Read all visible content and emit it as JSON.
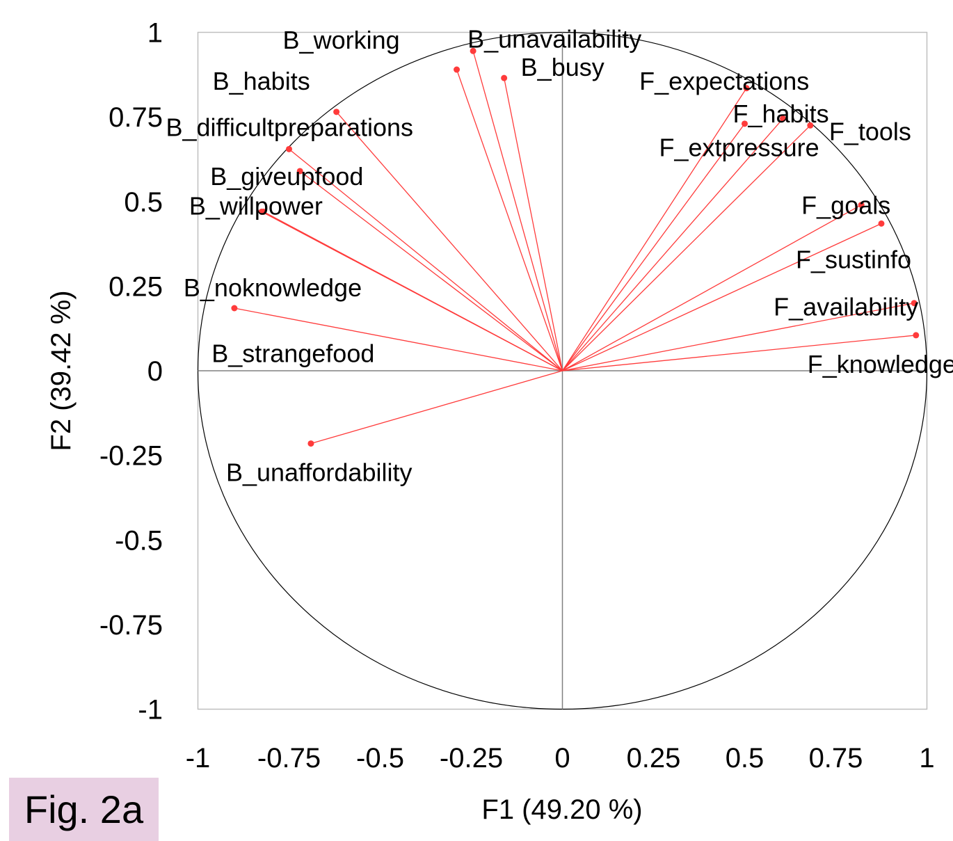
{
  "figure_label": "Fig. 2a",
  "chart_data": {
    "type": "scatter",
    "title": "",
    "xlabel": "F1 (49.20 %)",
    "ylabel": "F2 (39.42 %)",
    "xlim": [
      -1,
      1
    ],
    "ylim": [
      -1,
      1
    ],
    "xticks": [
      "-1",
      "-0.75",
      "-0.5",
      "-0.25",
      "0",
      "0.25",
      "0.5",
      "0.75",
      "1"
    ],
    "yticks": [
      "1",
      "0.75",
      "0.5",
      "0.25",
      "0",
      "-0.25",
      "-0.5",
      "-0.75",
      "-1"
    ],
    "grid": false,
    "unit_circle": true,
    "vector_color": "#ff3b3b",
    "points": [
      {
        "label": "B_working",
        "x": -0.29,
        "y": 0.89
      },
      {
        "label": "B_unavailability",
        "x": -0.245,
        "y": 0.945
      },
      {
        "label": "B_busy",
        "x": -0.16,
        "y": 0.865
      },
      {
        "label": "B_habits",
        "x": -0.62,
        "y": 0.765
      },
      {
        "label": "B_difficultpreparations",
        "x": -0.75,
        "y": 0.655
      },
      {
        "label": "B_giveupfood",
        "x": -0.72,
        "y": 0.59
      },
      {
        "label": "B_willpower",
        "x": -0.82,
        "y": 0.47
      },
      {
        "label": "B_noknowledge",
        "x": -0.9,
        "y": 0.185
      },
      {
        "label": "B_strangefood",
        "x": -0.825,
        "y": 0.47
      },
      {
        "label": "B_unaffordability",
        "x": -0.69,
        "y": -0.215
      },
      {
        "label": "F_expectations",
        "x": 0.505,
        "y": 0.835
      },
      {
        "label": "F_habits",
        "x": 0.5,
        "y": 0.73
      },
      {
        "label": "F_tools",
        "x": 0.68,
        "y": 0.725
      },
      {
        "label": "F_extpressure",
        "x": 0.605,
        "y": 0.745
      },
      {
        "label": "F_goals",
        "x": 0.82,
        "y": 0.49
      },
      {
        "label": "F_sustinfo",
        "x": 0.875,
        "y": 0.435
      },
      {
        "label": "F_availability",
        "x": 0.965,
        "y": 0.2
      },
      {
        "label": "F_knowledge",
        "x": 0.97,
        "y": 0.105
      }
    ]
  }
}
